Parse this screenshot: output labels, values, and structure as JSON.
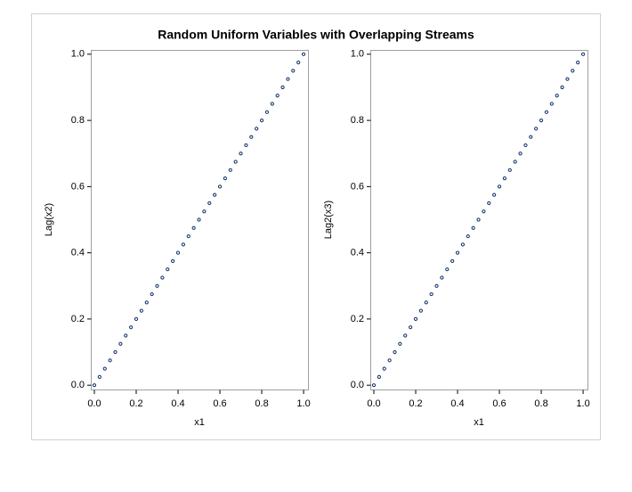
{
  "title": "Random Uniform Variables with Overlapping Streams",
  "chart_data": [
    {
      "type": "scatter",
      "xlabel": "x1",
      "ylabel": "Lag(x2)",
      "color": "#0b2f6e",
      "x": [
        0,
        0.025,
        0.05,
        0.075,
        0.1,
        0.125,
        0.15,
        0.175,
        0.2,
        0.225,
        0.25,
        0.275,
        0.3,
        0.325,
        0.35,
        0.375,
        0.4,
        0.425,
        0.45,
        0.475,
        0.5,
        0.525,
        0.55,
        0.575,
        0.6,
        0.625,
        0.65,
        0.675,
        0.7,
        0.725,
        0.75,
        0.775,
        0.8,
        0.825,
        0.85,
        0.875,
        0.9,
        0.925,
        0.95,
        0.975,
        1
      ],
      "values": [
        0,
        0.025,
        0.05,
        0.075,
        0.1,
        0.125,
        0.15,
        0.175,
        0.2,
        0.225,
        0.25,
        0.275,
        0.3,
        0.325,
        0.35,
        0.375,
        0.4,
        0.425,
        0.45,
        0.475,
        0.5,
        0.525,
        0.55,
        0.575,
        0.6,
        0.625,
        0.65,
        0.675,
        0.7,
        0.725,
        0.75,
        0.775,
        0.8,
        0.825,
        0.85,
        0.875,
        0.9,
        0.925,
        0.95,
        0.975,
        1
      ],
      "xlim": [
        -0.017,
        1.021
      ],
      "ylim": [
        -0.013,
        1.013
      ],
      "xticks": [
        {
          "value": 0,
          "label": "0.0"
        },
        0.2,
        0.4,
        0.6,
        0.8,
        {
          "value": 1,
          "label": "1.0"
        }
      ],
      "yticks": [
        {
          "value": 0,
          "label": "0.0"
        },
        0.2,
        0.4,
        0.6,
        0.8,
        {
          "value": 1,
          "label": "1.0"
        }
      ]
    },
    {
      "type": "scatter",
      "xlabel": "x1",
      "ylabel": "Lag2(x3)",
      "color": "#0b2f6e",
      "x": [
        0,
        0.025,
        0.05,
        0.075,
        0.1,
        0.125,
        0.15,
        0.175,
        0.2,
        0.225,
        0.25,
        0.275,
        0.3,
        0.325,
        0.35,
        0.375,
        0.4,
        0.425,
        0.45,
        0.475,
        0.5,
        0.525,
        0.55,
        0.575,
        0.6,
        0.625,
        0.65,
        0.675,
        0.7,
        0.725,
        0.75,
        0.775,
        0.8,
        0.825,
        0.85,
        0.875,
        0.9,
        0.925,
        0.95,
        0.975,
        1
      ],
      "values": [
        0,
        0.025,
        0.05,
        0.075,
        0.1,
        0.125,
        0.15,
        0.175,
        0.2,
        0.225,
        0.25,
        0.275,
        0.3,
        0.325,
        0.35,
        0.375,
        0.4,
        0.425,
        0.45,
        0.475,
        0.5,
        0.525,
        0.55,
        0.575,
        0.6,
        0.625,
        0.65,
        0.675,
        0.7,
        0.725,
        0.75,
        0.775,
        0.8,
        0.825,
        0.85,
        0.875,
        0.9,
        0.925,
        0.95,
        0.975,
        1
      ],
      "xlim": [
        -0.017,
        1.021
      ],
      "ylim": [
        -0.013,
        1.013
      ],
      "xticks": [
        {
          "value": 0,
          "label": "0.0"
        },
        0.2,
        0.4,
        0.6,
        0.8,
        {
          "value": 1,
          "label": "1.0"
        }
      ],
      "yticks": [
        {
          "value": 0,
          "label": "0.0"
        },
        0.2,
        0.4,
        0.6,
        0.8,
        {
          "value": 1,
          "label": "1.0"
        }
      ]
    }
  ]
}
